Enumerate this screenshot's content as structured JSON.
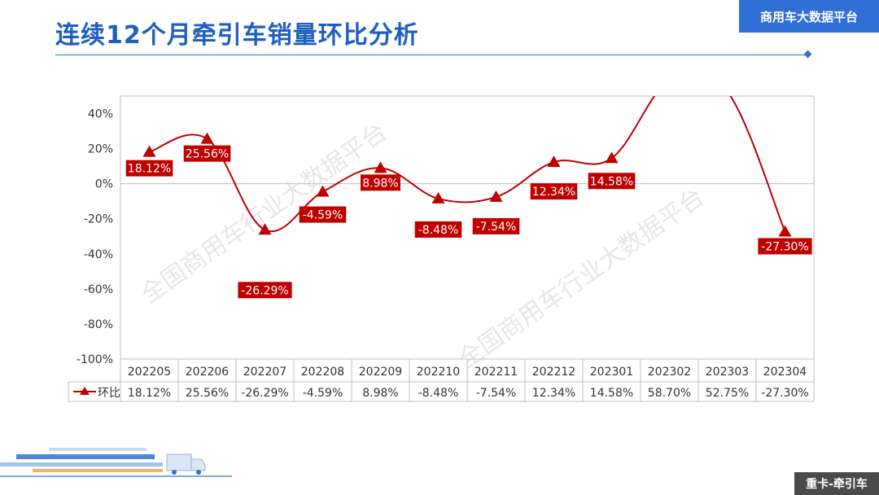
{
  "header": {
    "title": "连续12个月牵引车销量环比分析",
    "brand": "商用车大数据平台"
  },
  "footer": {
    "badge": "重卡-牵引车"
  },
  "watermark": "全国商用车行业大数据平台",
  "chart_data": {
    "type": "line",
    "title": "",
    "categories": [
      "202205",
      "202206",
      "202207",
      "202208",
      "202209",
      "202210",
      "202211",
      "202212",
      "202301",
      "202302",
      "202303",
      "202304"
    ],
    "series": [
      {
        "name": "环比",
        "values": [
          18.12,
          25.56,
          -26.29,
          -4.59,
          8.98,
          -8.48,
          -7.54,
          12.34,
          14.58,
          58.7,
          52.75,
          -27.3
        ],
        "labels": [
          "18.12%",
          "25.56%",
          "-26.29%",
          "-4.59%",
          "8.98%",
          "-8.48%",
          "-7.54%",
          "12.34%",
          "14.58%",
          "58.70%",
          "52.75%",
          "-27.30%"
        ]
      }
    ],
    "yticks": [
      40,
      20,
      0,
      -20,
      -40,
      -60,
      -80,
      -100
    ],
    "ytick_labels": [
      "40%",
      "20%",
      "0%",
      "-20%",
      "-40%",
      "-60%",
      "-80%",
      "-100%"
    ],
    "ylim": [
      -100,
      50
    ],
    "y_unit": "percent",
    "data_table": true,
    "colors": {
      "series": "#c00000",
      "label_bg": "#c00000",
      "grid": "#bfbfbf",
      "axis": "#999999"
    }
  }
}
